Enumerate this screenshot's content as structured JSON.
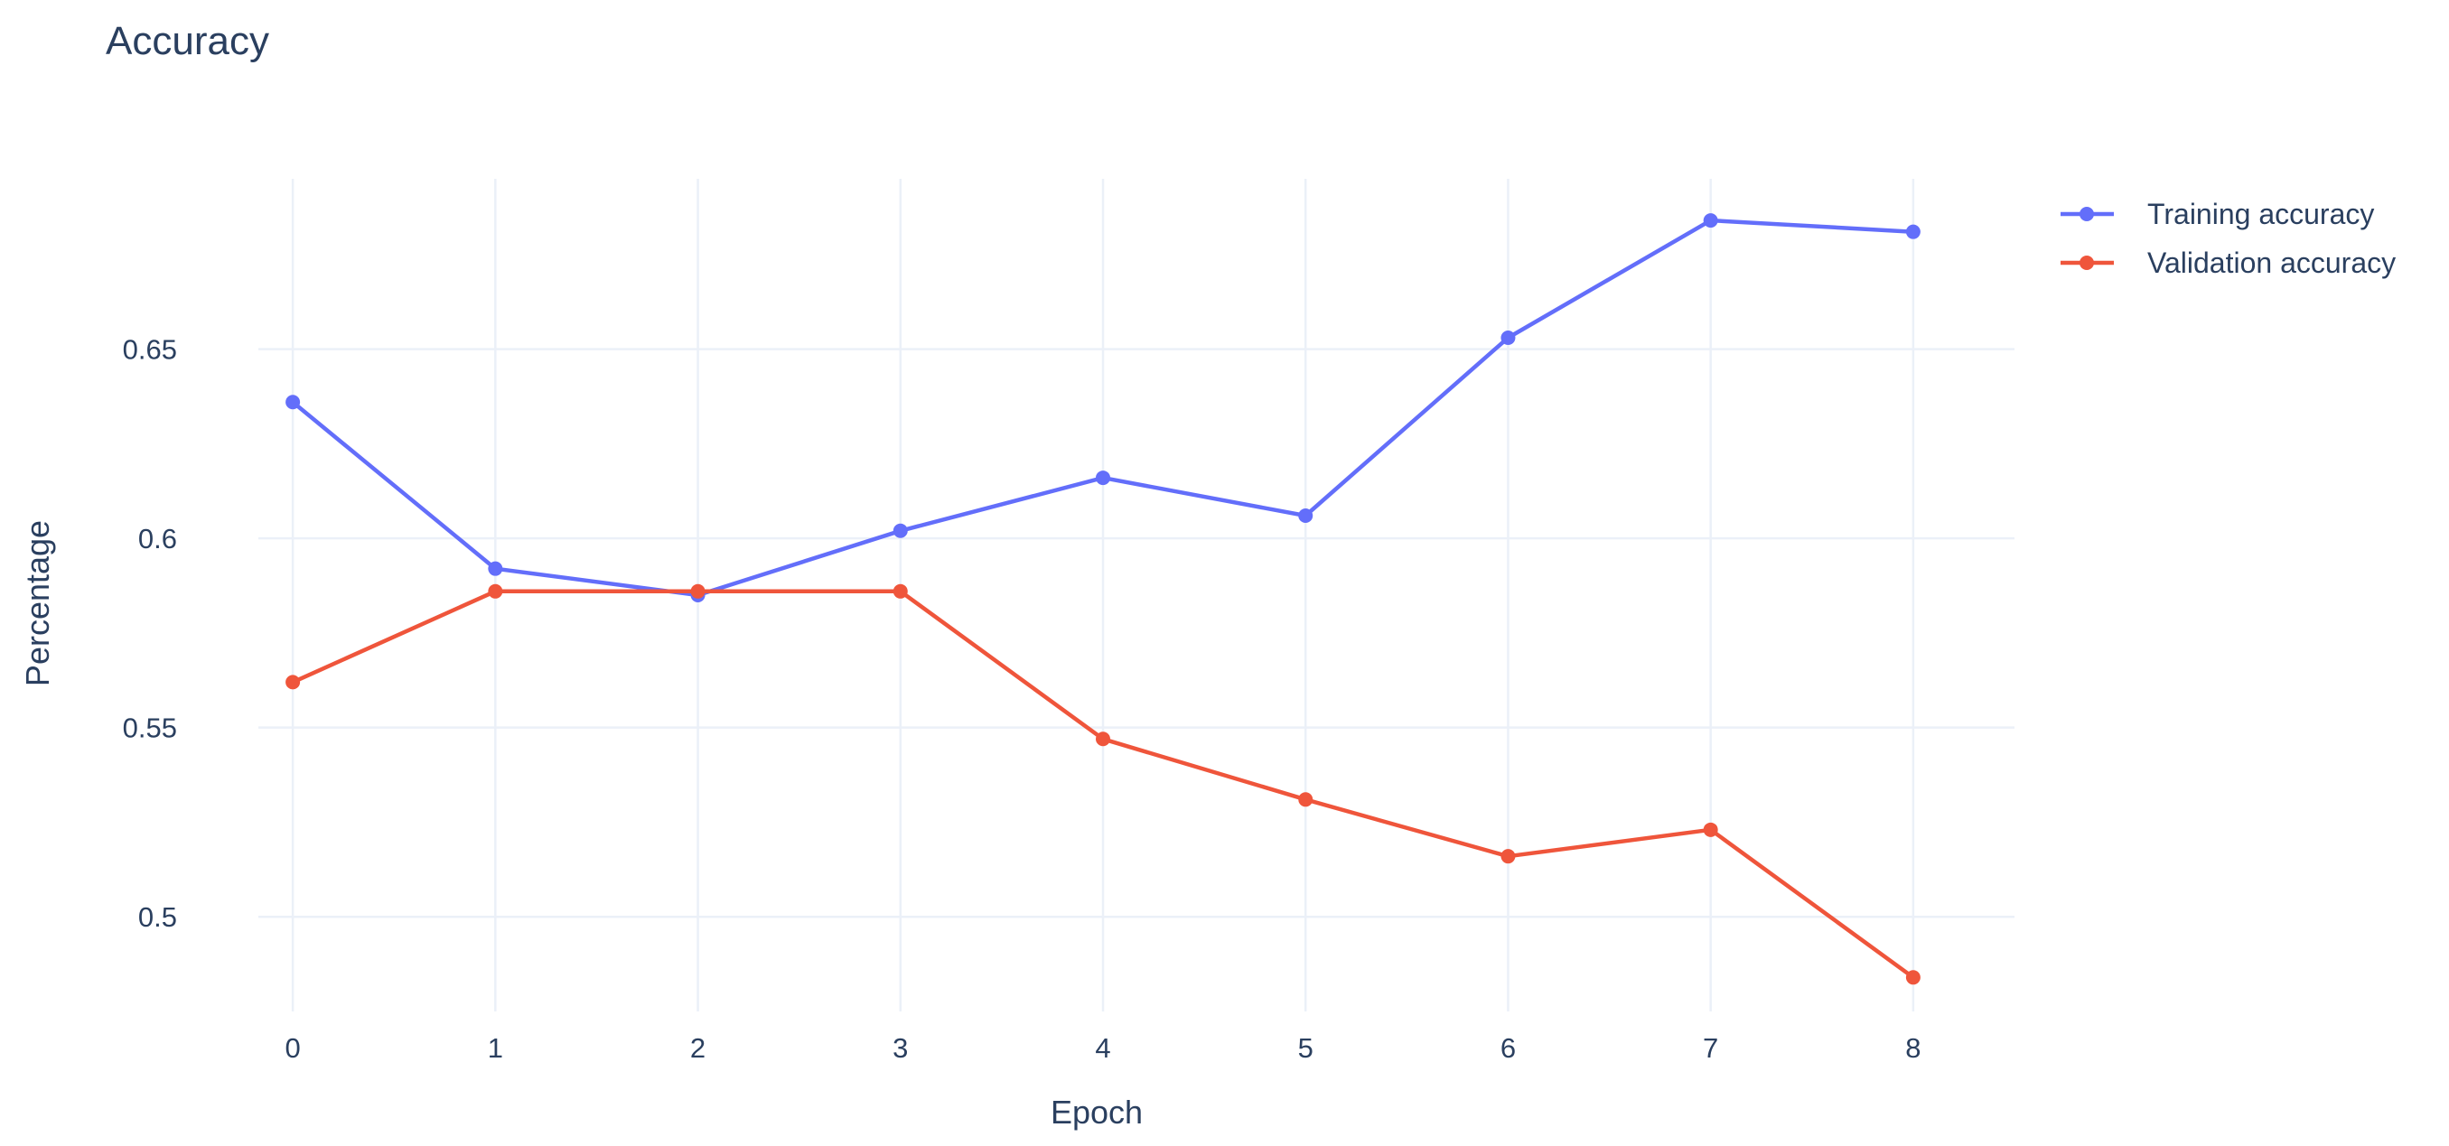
{
  "chart_data": {
    "type": "line",
    "title": "Accuracy",
    "xlabel": "Epoch",
    "ylabel": "Percentage",
    "x": [
      0,
      1,
      2,
      3,
      4,
      5,
      6,
      7,
      8
    ],
    "xlim": [
      -0.17,
      8.5
    ],
    "ylim": [
      0.475,
      0.695
    ],
    "xticks": [
      0,
      1,
      2,
      3,
      4,
      5,
      6,
      7,
      8
    ],
    "yticks": [
      0.5,
      0.55,
      0.6,
      0.65
    ],
    "ytick_labels": [
      "0.5",
      "0.55",
      "0.6",
      "0.65"
    ],
    "grid": true,
    "legend_position": "top-right",
    "series": [
      {
        "name": "Training accuracy",
        "color": "#636efa",
        "values": [
          0.636,
          0.592,
          0.585,
          0.602,
          0.616,
          0.606,
          0.653,
          0.684,
          0.681
        ]
      },
      {
        "name": "Validation accuracy",
        "color": "#ef553b",
        "values": [
          0.562,
          0.586,
          0.586,
          0.586,
          0.547,
          0.531,
          0.516,
          0.523,
          0.484
        ]
      }
    ]
  }
}
